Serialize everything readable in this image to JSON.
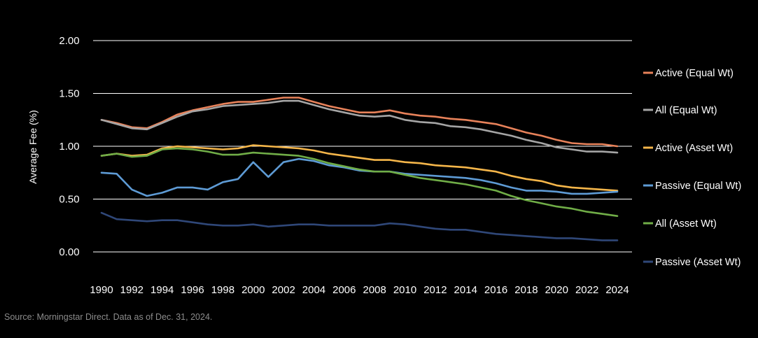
{
  "source": "Source: Morningstar Direct. Data as of Dec. 31, 2024.",
  "chart_data": {
    "type": "line",
    "title": "",
    "xlabel": "",
    "ylabel": "Average Fee (%)",
    "ylim": [
      0,
      2
    ],
    "yticks": [
      0,
      0.5,
      1,
      1.5,
      2
    ],
    "ytick_labels": [
      "0.00",
      "0.50",
      "1.00",
      "1.50",
      "2.00"
    ],
    "xlim": [
      1990,
      2024
    ],
    "xticks": [
      1990,
      1992,
      1994,
      1996,
      1998,
      2000,
      2002,
      2004,
      2006,
      2008,
      2010,
      2012,
      2014,
      2016,
      2018,
      2020,
      2022,
      2024
    ],
    "xtick_labels": [
      "1990",
      "1992",
      "1994",
      "1996",
      "1998",
      "2000",
      "2002",
      "2004",
      "2006",
      "2008",
      "2010",
      "2012",
      "2014",
      "2016",
      "2018",
      "2020",
      "2022",
      "2024"
    ],
    "grid": "horizontal",
    "legend_position": "right",
    "x": [
      1990,
      1991,
      1992,
      1993,
      1994,
      1995,
      1996,
      1997,
      1998,
      1999,
      2000,
      2001,
      2002,
      2003,
      2004,
      2005,
      2006,
      2007,
      2008,
      2009,
      2010,
      2011,
      2012,
      2013,
      2014,
      2015,
      2016,
      2017,
      2018,
      2019,
      2020,
      2021,
      2022,
      2023,
      2024
    ],
    "series": [
      {
        "name": "Active (Equal Wt)",
        "color": "#e8825a",
        "values": [
          1.25,
          1.22,
          1.18,
          1.17,
          1.23,
          1.3,
          1.34,
          1.37,
          1.4,
          1.42,
          1.42,
          1.44,
          1.46,
          1.46,
          1.42,
          1.38,
          1.35,
          1.32,
          1.32,
          1.34,
          1.31,
          1.29,
          1.28,
          1.26,
          1.25,
          1.23,
          1.21,
          1.17,
          1.13,
          1.1,
          1.06,
          1.03,
          1.02,
          1.02,
          1.0
        ]
      },
      {
        "name": "All (Equal Wt)",
        "color": "#a5a5a5",
        "values": [
          1.25,
          1.21,
          1.17,
          1.16,
          1.22,
          1.28,
          1.33,
          1.35,
          1.38,
          1.39,
          1.4,
          1.41,
          1.43,
          1.43,
          1.39,
          1.35,
          1.32,
          1.29,
          1.28,
          1.29,
          1.25,
          1.23,
          1.22,
          1.19,
          1.18,
          1.16,
          1.13,
          1.1,
          1.06,
          1.03,
          0.99,
          0.97,
          0.95,
          0.95,
          0.94
        ]
      },
      {
        "name": "Active (Asset Wt)",
        "color": "#f5b64a",
        "values": [
          0.91,
          0.93,
          0.91,
          0.92,
          0.98,
          1.0,
          0.99,
          0.98,
          0.97,
          0.98,
          1.01,
          1.0,
          0.99,
          0.98,
          0.96,
          0.93,
          0.91,
          0.89,
          0.87,
          0.87,
          0.85,
          0.84,
          0.82,
          0.81,
          0.8,
          0.78,
          0.76,
          0.72,
          0.69,
          0.67,
          0.63,
          0.61,
          0.6,
          0.59,
          0.58
        ]
      },
      {
        "name": "Passive (Equal Wt)",
        "color": "#5e9bd5",
        "values": [
          0.75,
          0.74,
          0.59,
          0.53,
          0.56,
          0.61,
          0.61,
          0.59,
          0.66,
          0.69,
          0.85,
          0.71,
          0.85,
          0.88,
          0.86,
          0.82,
          0.8,
          0.77,
          0.76,
          0.76,
          0.74,
          0.73,
          0.72,
          0.71,
          0.7,
          0.68,
          0.65,
          0.61,
          0.58,
          0.58,
          0.57,
          0.55,
          0.55,
          0.56,
          0.57
        ]
      },
      {
        "name": "All (Asset Wt)",
        "color": "#70ad47",
        "values": [
          0.91,
          0.93,
          0.9,
          0.91,
          0.97,
          0.98,
          0.97,
          0.95,
          0.92,
          0.92,
          0.94,
          0.93,
          0.92,
          0.91,
          0.88,
          0.84,
          0.81,
          0.78,
          0.76,
          0.76,
          0.73,
          0.7,
          0.68,
          0.66,
          0.64,
          0.61,
          0.58,
          0.53,
          0.49,
          0.46,
          0.43,
          0.41,
          0.38,
          0.36,
          0.34
        ]
      },
      {
        "name": "Passive (Asset Wt)",
        "color": "#2f4778",
        "values": [
          0.37,
          0.31,
          0.3,
          0.29,
          0.3,
          0.3,
          0.28,
          0.26,
          0.25,
          0.25,
          0.26,
          0.24,
          0.25,
          0.26,
          0.26,
          0.25,
          0.25,
          0.25,
          0.25,
          0.27,
          0.26,
          0.24,
          0.22,
          0.21,
          0.21,
          0.19,
          0.17,
          0.16,
          0.15,
          0.14,
          0.13,
          0.13,
          0.12,
          0.11,
          0.11
        ]
      }
    ]
  }
}
